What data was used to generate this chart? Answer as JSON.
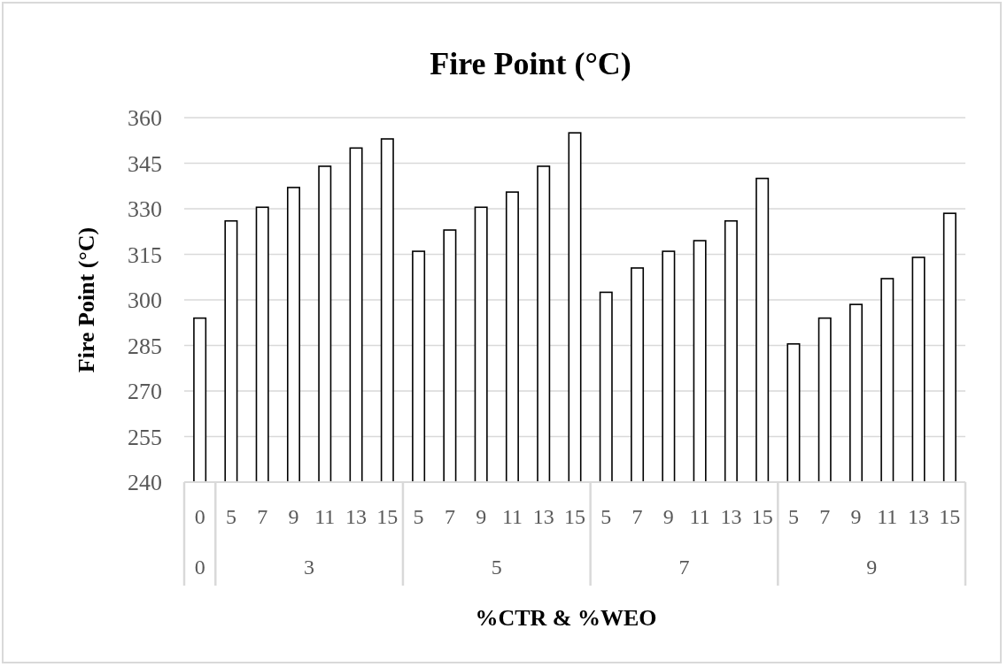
{
  "chart_data": {
    "type": "bar",
    "title": "Fire Point (°C)",
    "xlabel": "%CTR & %WEO",
    "ylabel": "Fire Point (°C)",
    "categories": [
      "0",
      "5",
      "7",
      "9",
      "11",
      "13",
      "15",
      "5",
      "7",
      "9",
      "11",
      "13",
      "15",
      "5",
      "7",
      "9",
      "11",
      "13",
      "15",
      "5",
      "7",
      "9",
      "11",
      "13",
      "15"
    ],
    "values": [
      294,
      326,
      330.5,
      337,
      344,
      350,
      353,
      316,
      323,
      330.5,
      335.5,
      344,
      355,
      302.5,
      310.5,
      316,
      319.5,
      326,
      340,
      285.5,
      294,
      298.5,
      307,
      314,
      328.5
    ],
    "color": "#ffffff",
    "annotations": [
      "0",
      "3",
      "5",
      "7",
      "9"
    ],
    "ylim": [
      240,
      360
    ],
    "yticks": [
      240,
      255,
      270,
      285,
      300,
      315,
      330,
      345,
      360
    ],
    "grid": "y"
  }
}
